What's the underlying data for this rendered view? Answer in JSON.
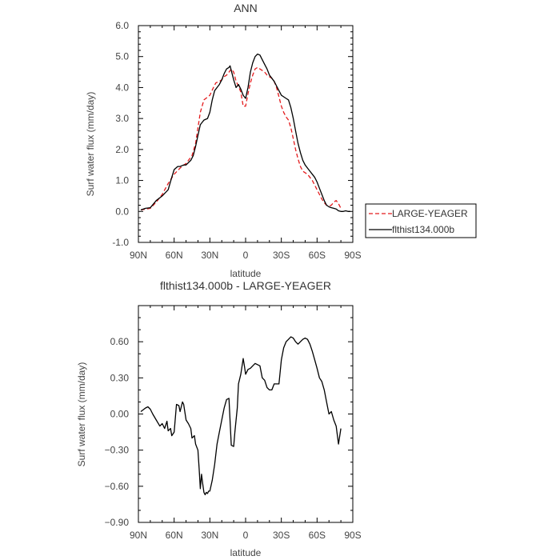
{
  "chart_data": [
    {
      "type": "line",
      "title": "ANN",
      "xlabel": "latitude",
      "ylabel": "Surf water flux (mm/day)",
      "xlim": [
        90,
        -90
      ],
      "ylim": [
        -1.0,
        6.0
      ],
      "xtick_labels": [
        "90N",
        "60N",
        "30N",
        "0",
        "30S",
        "60S",
        "90S"
      ],
      "ytick_labels": [
        "-1.0",
        "0.0",
        "1.0",
        "2.0",
        "3.0",
        "4.0",
        "5.0",
        "6.0"
      ],
      "legend": {
        "placement": "right",
        "entries": [
          "LARGE-YEAGER",
          "flthist134.000b"
        ]
      },
      "series": [
        {
          "name": "LARGE-YEAGER",
          "color": "#e41a1c",
          "dash": "dashed",
          "x": [
            88,
            80,
            75,
            70,
            65,
            60,
            55,
            50,
            45,
            42,
            38,
            35,
            30,
            27,
            25,
            22,
            20,
            18,
            16,
            14,
            12,
            10,
            8,
            6,
            4,
            2,
            0,
            -2,
            -4,
            -6,
            -8,
            -10,
            -12,
            -14,
            -16,
            -18,
            -20,
            -22,
            -24,
            -26,
            -28,
            -30,
            -32,
            -34,
            -36,
            -38,
            -40,
            -42,
            -44,
            -46,
            -48,
            -50,
            -52,
            -54,
            -56,
            -58,
            -60,
            -62,
            -64,
            -66,
            -68,
            -70,
            -72,
            -74,
            -76,
            -78,
            -80
          ],
          "y": [
            0.05,
            0.1,
            0.3,
            0.55,
            0.9,
            1.2,
            1.4,
            1.55,
            1.8,
            2.2,
            3.2,
            3.6,
            3.75,
            4.0,
            4.15,
            4.2,
            4.25,
            4.35,
            4.4,
            4.5,
            4.6,
            4.5,
            4.2,
            4.05,
            3.85,
            3.4,
            3.4,
            3.8,
            4.15,
            4.4,
            4.6,
            4.65,
            4.6,
            4.55,
            4.5,
            4.4,
            4.35,
            4.3,
            4.2,
            4.0,
            3.7,
            3.4,
            3.2,
            3.05,
            2.95,
            2.7,
            2.35,
            2.0,
            1.7,
            1.45,
            1.3,
            1.25,
            1.2,
            1.1,
            1.0,
            0.85,
            0.7,
            0.55,
            0.4,
            0.28,
            0.2,
            0.18,
            0.2,
            0.3,
            0.35,
            0.25,
            0.1
          ]
        },
        {
          "name": "flthist134.000b",
          "color": "#000000",
          "dash": "solid",
          "x": [
            88,
            84,
            80,
            75,
            70,
            65,
            62,
            60,
            57,
            55,
            52,
            50,
            46,
            44,
            42,
            40,
            38,
            35,
            32,
            30,
            28,
            26,
            24,
            22,
            20,
            18,
            16,
            14,
            13,
            12,
            11,
            10,
            8,
            6,
            4,
            2,
            0,
            -2,
            -4,
            -6,
            -8,
            -10,
            -12,
            -14,
            -16,
            -18,
            -20,
            -22,
            -24,
            -26,
            -28,
            -30,
            -32,
            -34,
            -36,
            -38,
            -40,
            -42,
            -44,
            -46,
            -48,
            -50,
            -52,
            -54,
            -56,
            -58,
            -60,
            -62,
            -64,
            -66,
            -68,
            -70,
            -72,
            -74,
            -76,
            -78,
            -80,
            -82,
            -84,
            -86,
            -88
          ],
          "y": [
            0.05,
            0.1,
            0.12,
            0.35,
            0.5,
            0.7,
            1.1,
            1.35,
            1.45,
            1.45,
            1.5,
            1.5,
            1.65,
            1.8,
            2.1,
            2.45,
            2.8,
            2.95,
            3.0,
            3.2,
            3.6,
            3.9,
            4.0,
            4.1,
            4.25,
            4.45,
            4.6,
            4.65,
            4.7,
            4.55,
            4.4,
            4.25,
            4.0,
            4.1,
            3.95,
            3.75,
            3.65,
            4.0,
            4.5,
            4.8,
            5.0,
            5.08,
            5.05,
            4.9,
            4.75,
            4.6,
            4.4,
            4.3,
            4.2,
            4.05,
            3.9,
            3.75,
            3.7,
            3.65,
            3.6,
            3.35,
            3.0,
            2.6,
            2.2,
            1.9,
            1.65,
            1.5,
            1.4,
            1.3,
            1.2,
            1.1,
            0.95,
            0.75,
            0.55,
            0.35,
            0.2,
            0.15,
            0.12,
            0.1,
            0.08,
            0.02,
            0.0,
            0.0,
            0.02,
            0.0,
            0.0
          ]
        }
      ]
    },
    {
      "type": "line",
      "title": "flthist134.000b - LARGE-YEAGER",
      "xlabel": "latitude",
      "ylabel": "Surf water flux (mm/day)",
      "xlim": [
        90,
        -90
      ],
      "ylim": [
        -0.9,
        0.9
      ],
      "xtick_labels": [
        "90N",
        "60N",
        "30N",
        "0",
        "30S",
        "60S",
        "90S"
      ],
      "ytick_labels": [
        "−0.90",
        "−0.60",
        "−0.30",
        "0.00",
        "0.30",
        "0.60"
      ],
      "series": [
        {
          "name": "",
          "color": "#000000",
          "dash": "solid",
          "x": [
            88,
            84,
            82,
            80,
            78,
            75,
            72,
            70,
            68,
            66,
            65,
            63,
            62,
            60,
            58,
            56,
            55,
            53,
            52,
            50,
            48,
            46,
            45,
            43,
            42,
            40,
            39,
            38,
            37,
            36,
            35,
            34,
            33,
            32,
            31,
            30,
            28,
            26,
            24,
            22,
            20,
            18,
            16,
            14,
            12,
            10,
            9,
            8,
            7,
            6,
            4,
            2,
            1,
            0,
            -1,
            -2,
            -4,
            -6,
            -8,
            -10,
            -12,
            -14,
            -16,
            -18,
            -20,
            -22,
            -24,
            -26,
            -28,
            -30,
            -32,
            -34,
            -36,
            -38,
            -40,
            -42,
            -44,
            -46,
            -48,
            -50,
            -52,
            -54,
            -56,
            -58,
            -60,
            -62,
            -64,
            -66,
            -68,
            -70,
            -72,
            -74,
            -76,
            -78,
            -80
          ],
          "y": [
            0.02,
            0.05,
            0.06,
            0.04,
            0.0,
            -0.05,
            -0.1,
            -0.08,
            -0.12,
            -0.06,
            -0.14,
            -0.12,
            -0.18,
            -0.15,
            0.08,
            0.07,
            0.02,
            0.1,
            0.08,
            -0.05,
            -0.08,
            -0.12,
            -0.2,
            -0.18,
            -0.25,
            -0.3,
            -0.45,
            -0.62,
            -0.5,
            -0.58,
            -0.65,
            -0.67,
            -0.65,
            -0.66,
            -0.64,
            -0.64,
            -0.55,
            -0.42,
            -0.25,
            -0.15,
            -0.05,
            0.05,
            0.12,
            0.13,
            -0.26,
            -0.27,
            -0.15,
            -0.05,
            0.05,
            0.25,
            0.33,
            0.46,
            0.4,
            0.33,
            0.35,
            0.37,
            0.38,
            0.4,
            0.42,
            0.41,
            0.4,
            0.3,
            0.28,
            0.22,
            0.2,
            0.2,
            0.25,
            0.25,
            0.25,
            0.45,
            0.55,
            0.6,
            0.62,
            0.64,
            0.63,
            0.6,
            0.58,
            0.6,
            0.62,
            0.63,
            0.62,
            0.58,
            0.52,
            0.45,
            0.38,
            0.3,
            0.27,
            0.2,
            0.1,
            0.0,
            0.02,
            -0.05,
            -0.1,
            -0.25,
            -0.12
          ]
        }
      ]
    }
  ]
}
